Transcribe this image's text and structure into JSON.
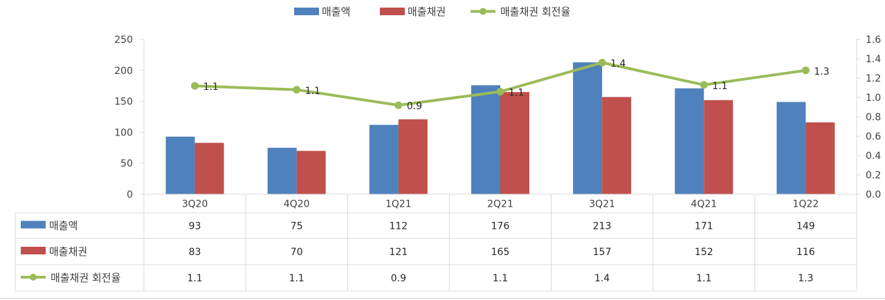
{
  "chart_data": {
    "type": "bar+line",
    "categories": [
      "3Q20",
      "4Q20",
      "1Q21",
      "2Q21",
      "3Q21",
      "4Q21",
      "1Q22"
    ],
    "series": [
      {
        "name": "매출액",
        "type": "bar",
        "axis": "left",
        "color": "#4F81BD",
        "values": [
          93,
          75,
          112,
          176,
          213,
          171,
          149
        ]
      },
      {
        "name": "매출채권",
        "type": "bar",
        "axis": "left",
        "color": "#C0504D",
        "values": [
          83,
          70,
          121,
          165,
          157,
          152,
          116
        ]
      },
      {
        "name": "매출채권 회전율",
        "type": "line",
        "axis": "right",
        "color": "#9BBB59",
        "values": [
          1.1,
          1.1,
          0.9,
          1.1,
          1.4,
          1.1,
          1.3
        ],
        "plot_values": [
          1.12,
          1.08,
          0.92,
          1.06,
          1.36,
          1.13,
          1.28
        ]
      }
    ],
    "y_left": {
      "min": 0,
      "max": 250,
      "step": 50,
      "ticks": [
        "0",
        "50",
        "100",
        "150",
        "200",
        "250"
      ]
    },
    "y_right": {
      "min": 0,
      "max": 1.6,
      "step": 0.2,
      "ticks": [
        "0.0",
        "0.2",
        "0.4",
        "0.6",
        "0.8",
        "1.0",
        "1.2",
        "1.4",
        "1.6"
      ]
    },
    "legend_position": "top-center",
    "data_table": true
  }
}
